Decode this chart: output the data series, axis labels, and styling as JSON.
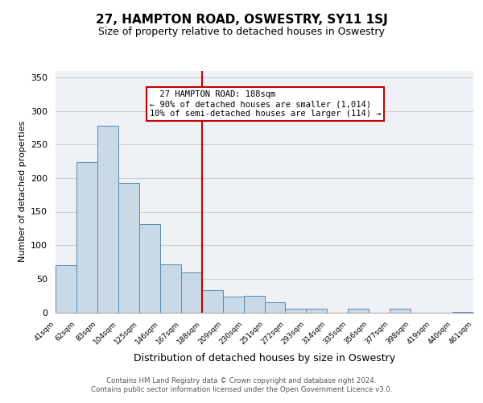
{
  "title": "27, HAMPTON ROAD, OSWESTRY, SY11 1SJ",
  "subtitle": "Size of property relative to detached houses in Oswestry",
  "xlabel": "Distribution of detached houses by size in Oswestry",
  "ylabel": "Number of detached properties",
  "footer_line1": "Contains HM Land Registry data © Crown copyright and database right 2024.",
  "footer_line2": "Contains public sector information licensed under the Open Government Licence v3.0.",
  "bin_labels": [
    "41sqm",
    "62sqm",
    "83sqm",
    "104sqm",
    "125sqm",
    "146sqm",
    "167sqm",
    "188sqm",
    "209sqm",
    "230sqm",
    "251sqm",
    "272sqm",
    "293sqm",
    "314sqm",
    "335sqm",
    "356sqm",
    "377sqm",
    "398sqm",
    "419sqm",
    "440sqm",
    "461sqm"
  ],
  "bar_heights": [
    70,
    224,
    278,
    193,
    131,
    72,
    59,
    33,
    23,
    25,
    15,
    5,
    6,
    0,
    5,
    0,
    6,
    0,
    0,
    1
  ],
  "bar_color": "#c8d9e8",
  "bar_edge_color": "#5a8ab0",
  "reference_line_x": 7,
  "reference_line_label": "27 HAMPTON ROAD: 188sqm",
  "annotation_line1": "← 90% of detached houses are smaller (1,014)",
  "annotation_line2": "10% of semi-detached houses are larger (114) →",
  "ref_line_color": "#cc0000",
  "annotation_box_edge_color": "#cc0000",
  "ylim": [
    0,
    360
  ],
  "yticks": [
    0,
    50,
    100,
    150,
    200,
    250,
    300,
    350
  ],
  "grid_color": "#cccccc",
  "bg_color": "#eef2f6"
}
